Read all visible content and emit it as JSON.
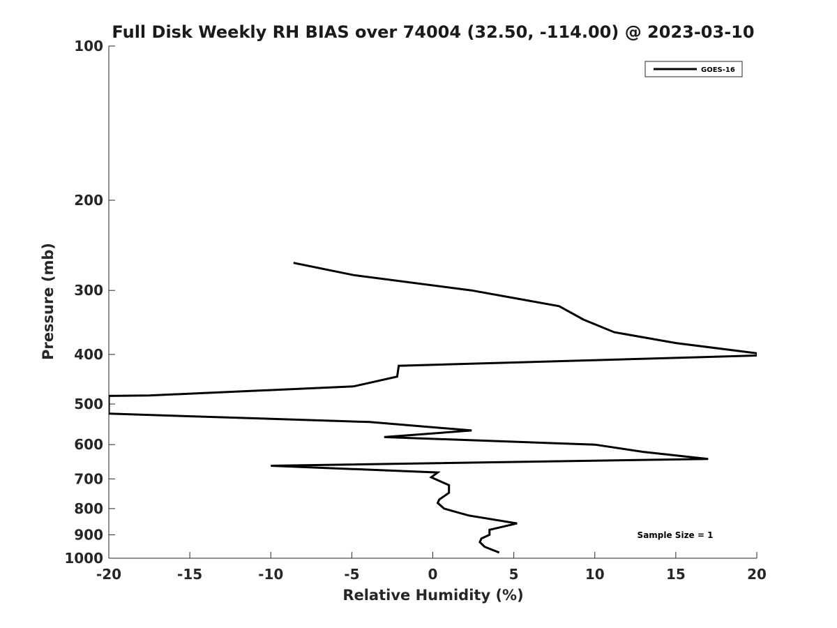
{
  "chart_data": {
    "type": "line",
    "title": "Full Disk Weekly RH BIAS over 74004 (32.50, -114.00) @ 2023-03-10",
    "xlabel": "Relative Humidity (%)",
    "ylabel": "Pressure (mb)",
    "xlim": [
      -20,
      20
    ],
    "ylim": [
      1000,
      100
    ],
    "yscale": "log",
    "y_reversed": true,
    "x_ticks": [
      "-20",
      "-15",
      "-10",
      "-5",
      "0",
      "5",
      "10",
      "15",
      "20"
    ],
    "x_tick_values": [
      -20,
      -15,
      -10,
      -5,
      0,
      5,
      10,
      15,
      20
    ],
    "y_ticks": [
      "100",
      "200",
      "300",
      "400",
      "500",
      "600",
      "700",
      "800",
      "900",
      "1000"
    ],
    "y_tick_values": [
      100,
      200,
      300,
      400,
      500,
      600,
      700,
      800,
      900,
      1000
    ],
    "grid": false,
    "legend_position": "top-right",
    "series": [
      {
        "name": "GOES-16",
        "color": "#000000",
        "x": [
          -8.6,
          -4.9,
          2.4,
          7.8,
          9.3,
          11.2,
          15.0,
          20.0,
          20.0,
          -2.1,
          -2.2,
          -4.9,
          -17.5,
          -20.0,
          -20.0,
          -3.9,
          2.4,
          -3.0,
          10.0,
          13.0,
          17.0,
          -10.0,
          0.3,
          -0.1,
          1.0,
          1.0,
          0.4,
          0.3,
          0.7,
          2.2,
          5.2,
          3.5,
          3.5,
          3.0,
          2.9,
          3.2,
          4.1
        ],
        "y": [
          265,
          280,
          300,
          322,
          342,
          362,
          380,
          398,
          402,
          421,
          442,
          462,
          481,
          482,
          522,
          542,
          563,
          580,
          600,
          620,
          640,
          660,
          680,
          695,
          720,
          745,
          768,
          780,
          800,
          825,
          855,
          880,
          900,
          915,
          930,
          950,
          975
        ]
      }
    ],
    "legend": [
      {
        "label": "GOES-16",
        "color": "#000000"
      }
    ],
    "annotations": [
      "Sample Size = 1"
    ]
  }
}
